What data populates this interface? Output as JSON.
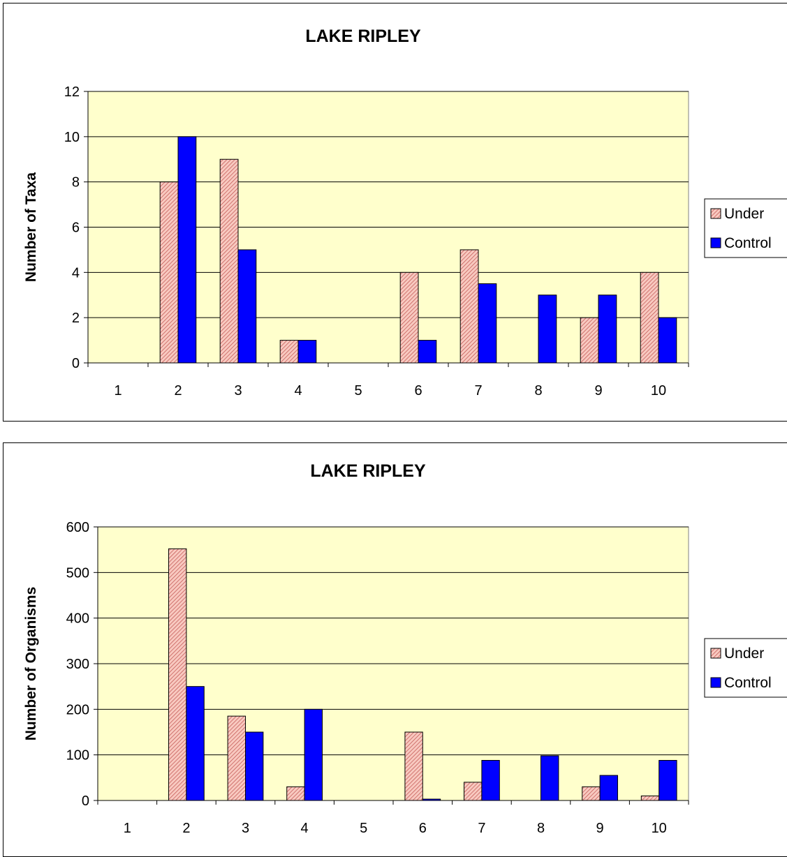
{
  "chart_data": [
    {
      "type": "bar",
      "title": "LAKE RIPLEY",
      "xlabel": "",
      "ylabel": "Number of Taxa",
      "categories": [
        "1",
        "2",
        "3",
        "4",
        "5",
        "6",
        "7",
        "8",
        "9",
        "10"
      ],
      "ylim": [
        0,
        12
      ],
      "yticks": [
        0,
        2,
        4,
        6,
        8,
        10,
        12
      ],
      "grid": true,
      "legend": "right",
      "series": [
        {
          "name": "Under",
          "values": [
            0,
            8,
            9,
            1,
            0,
            4,
            5,
            0,
            2,
            4
          ],
          "color": "#f4a6a6",
          "pattern": "hatched"
        },
        {
          "name": "Control",
          "values": [
            0,
            10,
            5,
            1,
            0,
            1,
            3.5,
            3,
            3,
            2
          ],
          "color": "#0000ff",
          "pattern": "solid"
        }
      ],
      "plot_background": "#ffffcc"
    },
    {
      "type": "bar",
      "title": "LAKE RIPLEY",
      "xlabel": "",
      "ylabel": "Number of Organisms",
      "categories": [
        "1",
        "2",
        "3",
        "4",
        "5",
        "6",
        "7",
        "8",
        "9",
        "10"
      ],
      "ylim": [
        0,
        600
      ],
      "yticks": [
        0,
        100,
        200,
        300,
        400,
        500,
        600
      ],
      "grid": true,
      "legend": "right",
      "series": [
        {
          "name": "Under",
          "values": [
            0,
            552,
            185,
            30,
            0,
            150,
            40,
            0,
            30,
            10
          ],
          "color": "#f4a6a6",
          "pattern": "hatched"
        },
        {
          "name": "Control",
          "values": [
            0,
            250,
            150,
            200,
            0,
            3,
            88,
            98,
            55,
            88
          ],
          "color": "#0000ff",
          "pattern": "solid"
        }
      ],
      "plot_background": "#ffffcc"
    }
  ]
}
